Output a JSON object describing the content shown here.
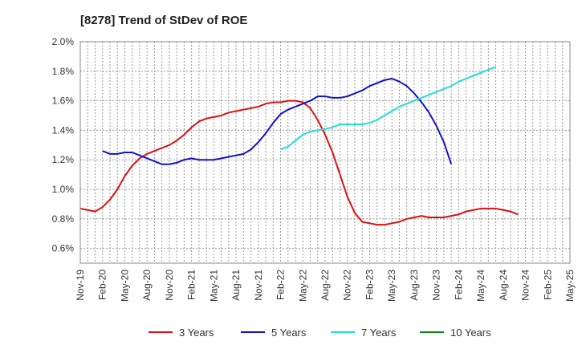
{
  "chart_data": {
    "type": "line",
    "title": "[8278]  Trend of StDev of ROE",
    "xlabel": "",
    "ylabel": "",
    "ylim": [
      0.5,
      2.0
    ],
    "y_ticks": [
      0.6,
      0.8,
      1.0,
      1.2,
      1.4,
      1.6,
      1.8,
      2.0
    ],
    "y_tick_labels": [
      "0.6%",
      "0.8%",
      "1.0%",
      "1.2%",
      "1.4%",
      "1.6%",
      "1.8%",
      "2.0%"
    ],
    "x_tick_labels": [
      "Nov-19",
      "Feb-20",
      "May-20",
      "Aug-20",
      "Nov-20",
      "Feb-21",
      "May-21",
      "Aug-21",
      "Nov-21",
      "Feb-22",
      "May-22",
      "Aug-22",
      "Nov-22",
      "Feb-23",
      "May-23",
      "Aug-23",
      "Nov-23",
      "Feb-24",
      "May-24",
      "Aug-24",
      "Nov-24",
      "Feb-25",
      "May-25"
    ],
    "grid": true,
    "legend_position": "bottom",
    "series": [
      {
        "name": "3 Years",
        "color": "#dd1111",
        "start_index": 0,
        "values": [
          0.87,
          0.86,
          0.85,
          0.88,
          0.93,
          1.0,
          1.09,
          1.16,
          1.21,
          1.24,
          1.26,
          1.28,
          1.3,
          1.33,
          1.37,
          1.42,
          1.46,
          1.48,
          1.49,
          1.5,
          1.52,
          1.53,
          1.54,
          1.55,
          1.56,
          1.58,
          1.59,
          1.59,
          1.6,
          1.6,
          1.59,
          1.55,
          1.47,
          1.37,
          1.25,
          1.1,
          0.95,
          0.84,
          0.78,
          0.77,
          0.76,
          0.76,
          0.77,
          0.78,
          0.8,
          0.81,
          0.82,
          0.81,
          0.81,
          0.81,
          0.82,
          0.83,
          0.85,
          0.86,
          0.87,
          0.87,
          0.87,
          0.86,
          0.85,
          0.83
        ]
      },
      {
        "name": "5 Years",
        "color": "#1111cc",
        "start_index": 3,
        "values": [
          1.26,
          1.24,
          1.24,
          1.25,
          1.25,
          1.23,
          1.21,
          1.19,
          1.17,
          1.17,
          1.18,
          1.2,
          1.21,
          1.2,
          1.2,
          1.2,
          1.21,
          1.22,
          1.23,
          1.24,
          1.27,
          1.32,
          1.38,
          1.45,
          1.51,
          1.54,
          1.56,
          1.58,
          1.6,
          1.63,
          1.63,
          1.62,
          1.62,
          1.63,
          1.65,
          1.67,
          1.7,
          1.72,
          1.74,
          1.75,
          1.73,
          1.7,
          1.65,
          1.59,
          1.52,
          1.43,
          1.32,
          1.17
        ]
      },
      {
        "name": "7 Years",
        "color": "#22dddd",
        "start_index": 27,
        "values": [
          1.27,
          1.29,
          1.33,
          1.37,
          1.39,
          1.4,
          1.41,
          1.42,
          1.44,
          1.44,
          1.44,
          1.44,
          1.45,
          1.47,
          1.5,
          1.53,
          1.56,
          1.58,
          1.6,
          1.62,
          1.64,
          1.66,
          1.68,
          1.7,
          1.73,
          1.75,
          1.77,
          1.79,
          1.81,
          1.83
        ]
      },
      {
        "name": "10 Years",
        "color": "#118811",
        "start_index": 0,
        "values": []
      }
    ]
  }
}
